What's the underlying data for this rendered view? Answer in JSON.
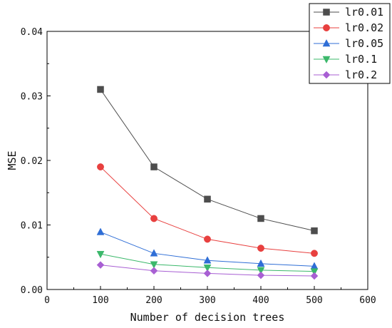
{
  "chart_data": {
    "type": "line",
    "xlabel": "Number of decision trees",
    "ylabel": "MSE",
    "xlim": [
      0,
      600
    ],
    "ylim": [
      0,
      0.04
    ],
    "x_ticks": [
      "0",
      "100",
      "200",
      "300",
      "400",
      "500",
      "600"
    ],
    "y_ticks": [
      "0.00",
      "0.01",
      "0.02",
      "0.03",
      "0.04"
    ],
    "grid": false,
    "legend_position": "top-right",
    "x": [
      100,
      200,
      300,
      400,
      500
    ],
    "series": [
      {
        "name": "lr0.01",
        "color": "#4d4d4d",
        "marker": "square",
        "values": [
          0.031,
          0.019,
          0.014,
          0.011,
          0.0091
        ]
      },
      {
        "name": "lr0.02",
        "color": "#e8403f",
        "marker": "circle",
        "values": [
          0.019,
          0.011,
          0.0078,
          0.0064,
          0.0056
        ]
      },
      {
        "name": "lr0.05",
        "color": "#2f6ed6",
        "marker": "triangle-up",
        "values": [
          0.0089,
          0.0056,
          0.0045,
          0.004,
          0.0036
        ]
      },
      {
        "name": "lr0.1",
        "color": "#3bb86b",
        "marker": "triangle-down",
        "values": [
          0.0055,
          0.0039,
          0.0034,
          0.003,
          0.0028
        ]
      },
      {
        "name": "lr0.2",
        "color": "#a85fd3",
        "marker": "diamond",
        "values": [
          0.0038,
          0.0029,
          0.0025,
          0.0022,
          0.0021
        ]
      }
    ]
  }
}
